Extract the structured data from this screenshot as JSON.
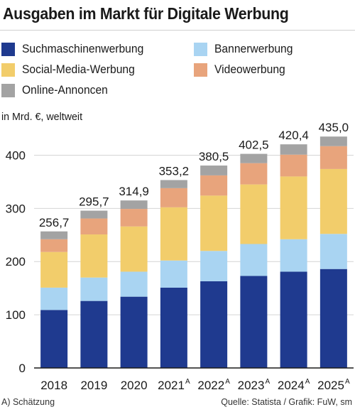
{
  "title": "Ausgaben im Markt für Digitale Werbung",
  "unit_label": "in Mrd. €, weltweit",
  "footnote": "A) Schätzung",
  "source": "Quelle: Statista / Grafik: FuW, sm",
  "legend": [
    {
      "label": "Suchmaschinenwerbung",
      "color": "#1f3a8f"
    },
    {
      "label": "Bannerwerbung",
      "color": "#a9d4f2"
    },
    {
      "label": "Social-Media-Werbung",
      "color": "#f2cd6b"
    },
    {
      "label": "Videowerbung",
      "color": "#e8a47c"
    },
    {
      "label": "Online-Annoncen",
      "color": "#a3a3a3"
    }
  ],
  "chart_data": {
    "type": "bar",
    "stacked": true,
    "title": "Ausgaben im Markt für Digitale Werbung",
    "ylabel": "in Mrd. €, weltweit",
    "ylim": [
      0,
      450
    ],
    "yticks": [
      "0",
      "100",
      "200",
      "300",
      "400"
    ],
    "grid": true,
    "categories": [
      "2018",
      "2019",
      "2020",
      "2021",
      "2022",
      "2023",
      "2024",
      "2025"
    ],
    "category_marks": [
      "",
      "",
      "",
      "A",
      "A",
      "A",
      "A",
      "A"
    ],
    "totals": [
      "256,7",
      "295,7",
      "314,9",
      "353,2",
      "380,5",
      "402,5",
      "420,4",
      "435,0"
    ],
    "series": [
      {
        "name": "Suchmaschinenwerbung",
        "color": "#1f3a8f",
        "values": [
          109,
          126,
          134,
          151,
          163,
          173,
          181,
          186
        ]
      },
      {
        "name": "Bannerwerbung",
        "color": "#a9d4f2",
        "values": [
          42,
          44,
          47,
          51,
          57,
          60,
          61,
          66
        ]
      },
      {
        "name": "Social-Media-Werbung",
        "color": "#f2cd6b",
        "values": [
          67,
          81,
          85,
          100,
          104,
          112,
          118,
          122
        ]
      },
      {
        "name": "Videowerbung",
        "color": "#e8a47c",
        "values": [
          24,
          30,
          33,
          36,
          38,
          40,
          41,
          43
        ]
      },
      {
        "name": "Online-Annoncen",
        "color": "#a3a3a3",
        "values": [
          14.7,
          14.7,
          15.9,
          15.2,
          18.5,
          17.5,
          19.4,
          18.0
        ]
      }
    ]
  }
}
